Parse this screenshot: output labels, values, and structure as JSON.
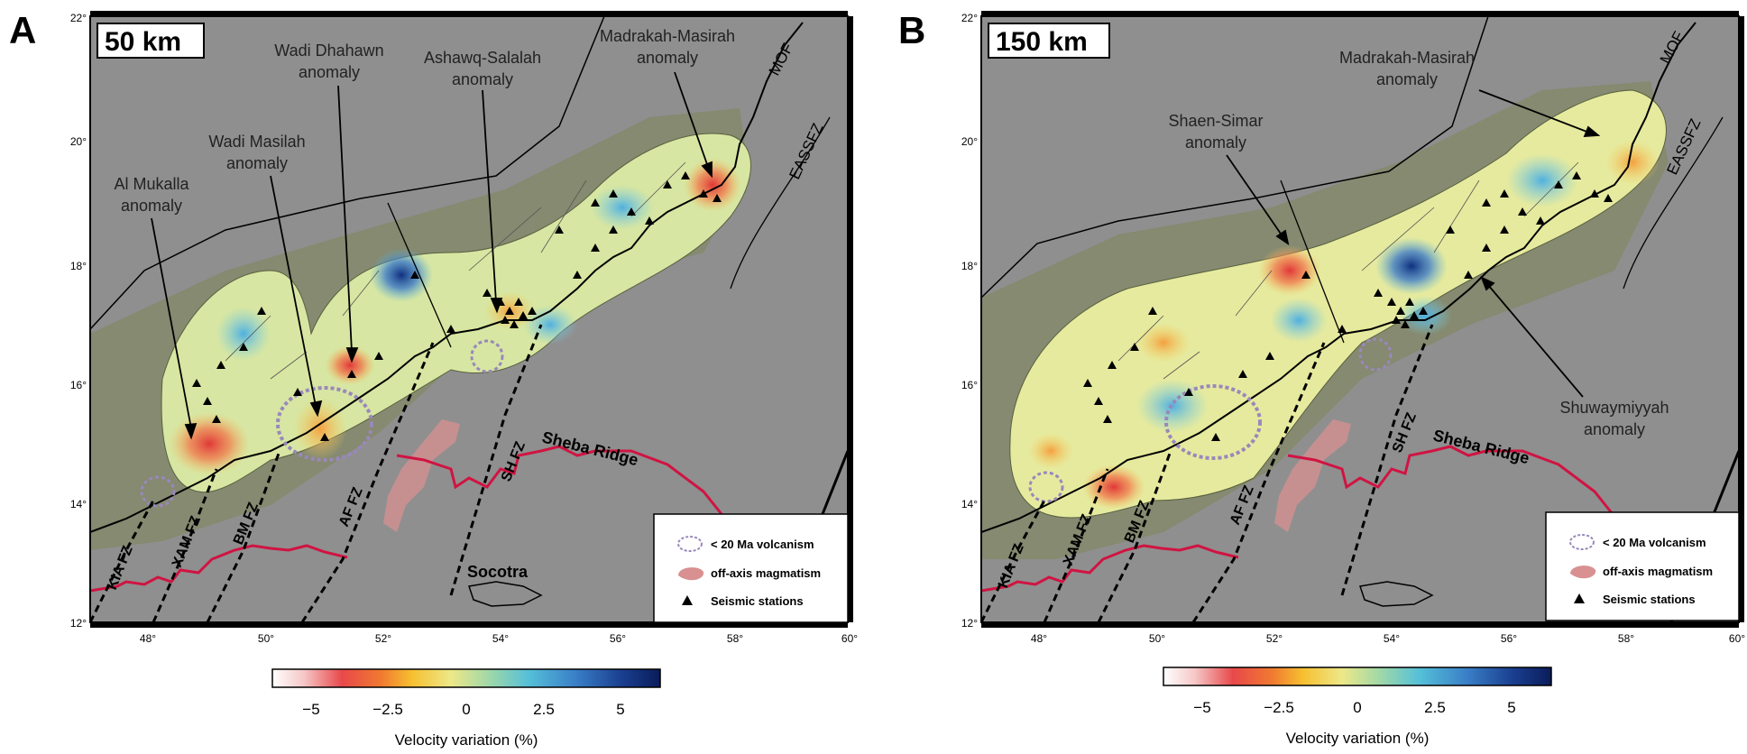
{
  "panels": [
    {
      "letter": "A",
      "depth_label": "50 km",
      "lon_ticks": [
        "48°",
        "50°",
        "52°",
        "54°",
        "56°",
        "58°",
        "60°"
      ],
      "lat_ticks": [
        "12°",
        "14°",
        "16°",
        "18°",
        "20°",
        "22°"
      ],
      "anomalies": [
        {
          "line1": "Al Mukalla",
          "line2": "anomaly"
        },
        {
          "line1": "Wadi Masilah",
          "line2": "anomaly"
        },
        {
          "line1": "Wadi Dhahawn",
          "line2": "anomaly"
        },
        {
          "line1": "Ashawq-Salalah",
          "line2": "anomaly"
        },
        {
          "line1": "Madrakah-Masirah",
          "line2": "anomaly"
        }
      ],
      "features": {
        "mof": "MOF",
        "eassfz": "EASSFZ",
        "sheba_ridge": "Sheba Ridge",
        "sh_fz": "SH FZ",
        "af_fz": "AF FZ",
        "bm_fz": "BM FZ",
        "xam_fz": "XAM FZ",
        "kia_fz": "KIA FZ",
        "socotra": "Socotra"
      },
      "colorbar": {
        "ticks": [
          "−5",
          "−2.5",
          "0",
          "2.5",
          "5"
        ],
        "label": "Velocity variation (%)"
      }
    },
    {
      "letter": "B",
      "depth_label": "150 km",
      "lon_ticks": [
        "48°",
        "50°",
        "52°",
        "54°",
        "56°",
        "58°",
        "60°"
      ],
      "lat_ticks": [
        "12°",
        "14°",
        "16°",
        "18°",
        "20°",
        "22°"
      ],
      "anomalies": [
        {
          "line1": "Madrakah-Masirah",
          "line2": "anomaly"
        },
        {
          "line1": "Shaen-Simar",
          "line2": "anomaly"
        },
        {
          "line1": "Shuwaymiyyah",
          "line2": "anomaly"
        }
      ],
      "features": {
        "mof": "MOF",
        "eassfz": "EASSFZ",
        "sheba_ridge": "Sheba Ridge",
        "sh_fz": "SH FZ",
        "af_fz": "AF FZ",
        "bm_fz": "BM FZ",
        "xam_fz": "XAM FZ",
        "kia_fz": "KIA FZ"
      },
      "colorbar": {
        "ticks": [
          "−5",
          "−2.5",
          "0",
          "2.5",
          "5"
        ],
        "label": "Velocity variation (%)"
      }
    }
  ],
  "legend": {
    "volcanism": "< 20 Ma volcanism",
    "magmatism": "off-axis magmatism",
    "stations": "Seismic stations"
  },
  "colors": {
    "background": "#8f8f8f",
    "ridge": "#d01442",
    "volcanism": "#9988bb",
    "magmatism": "#d89090"
  }
}
